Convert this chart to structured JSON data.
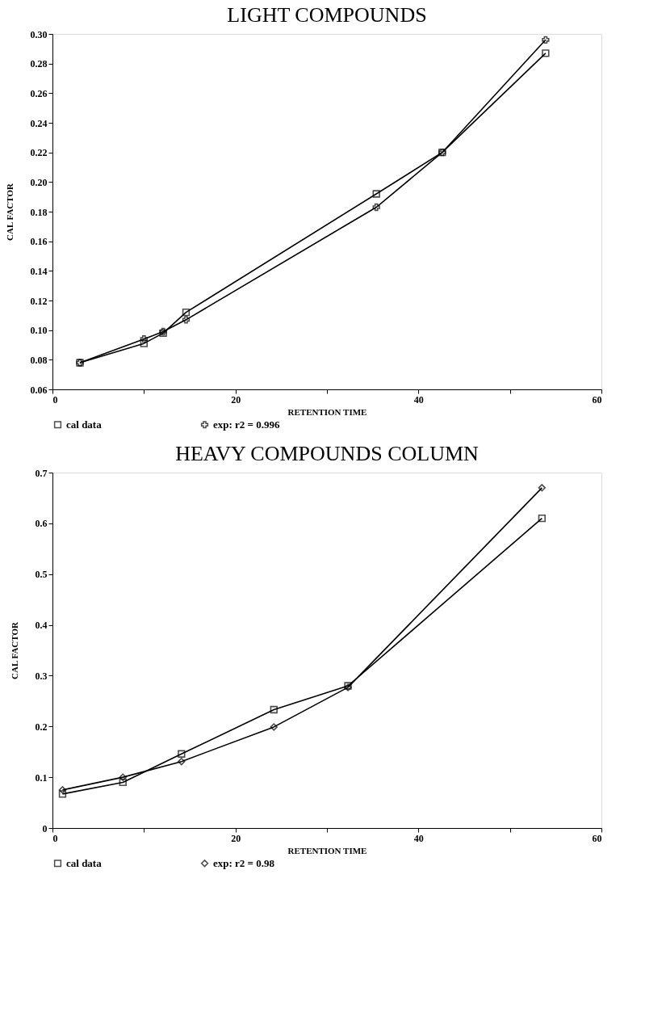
{
  "chart_data": [
    {
      "type": "line",
      "title": "LIGHT COMPOUNDS",
      "xlabel": "RETENTION TIME",
      "ylabel": "CAL FACTOR",
      "xlim": [
        0,
        60
      ],
      "xticks": [
        0,
        {
          "value": 10,
          "label": null
        },
        20,
        {
          "value": 30,
          "label": null
        },
        40,
        {
          "value": 50,
          "label": null
        },
        60
      ],
      "ylim": [
        0.06,
        0.3
      ],
      "yticks": [
        0.06,
        0.08,
        {
          "value": 0.1,
          "label": "0.10"
        },
        0.12,
        0.14,
        0.16,
        0.18,
        {
          "value": 0.2,
          "label": "0.20"
        },
        0.22,
        0.24,
        0.26,
        0.28,
        {
          "value": 0.3,
          "label": "0.30"
        }
      ],
      "x": [
        3.0,
        10.0,
        12.1,
        14.6,
        35.4,
        42.6,
        53.9
      ],
      "grid": false,
      "legend": "bottom",
      "line_style": "solid",
      "series": [
        {
          "name": "cal data",
          "color": "#000000",
          "marker": "square",
          "values": [
            0.078,
            0.091,
            0.098,
            0.112,
            0.192,
            0.22,
            0.287
          ]
        },
        {
          "name": "exp: r2 = 0.996",
          "color": "#000000",
          "marker": "cross",
          "values": [
            0.078,
            0.094,
            0.099,
            0.107,
            0.183,
            0.22,
            0.296
          ]
        }
      ]
    },
    {
      "type": "line",
      "title": "HEAVY COMPOUNDS COLUMN",
      "xlabel": "RETENTION TIME",
      "ylabel": "CAL FACTOR",
      "xlim": [
        0,
        60
      ],
      "xticks": [
        0,
        {
          "value": 10,
          "label": null
        },
        20,
        {
          "value": 30,
          "label": null
        },
        40,
        {
          "value": 50,
          "label": null
        },
        60
      ],
      "ylim": [
        0,
        0.7
      ],
      "yticks": [
        0,
        0.1,
        0.2,
        0.3,
        0.4,
        0.5,
        0.6,
        0.7
      ],
      "x": [
        1.1,
        7.7,
        14.1,
        24.2,
        32.3,
        53.5
      ],
      "grid": false,
      "legend": "bottom",
      "line_style": "solid",
      "series": [
        {
          "name": "cal data",
          "color": "#000000",
          "marker": "square",
          "values": [
            0.067,
            0.09,
            0.146,
            0.233,
            0.28,
            0.61
          ]
        },
        {
          "name": "exp: r2 = 0.98",
          "color": "#000000",
          "marker": "diamond",
          "values": [
            0.075,
            0.1,
            0.131,
            0.199,
            0.277,
            0.67
          ]
        }
      ]
    }
  ]
}
